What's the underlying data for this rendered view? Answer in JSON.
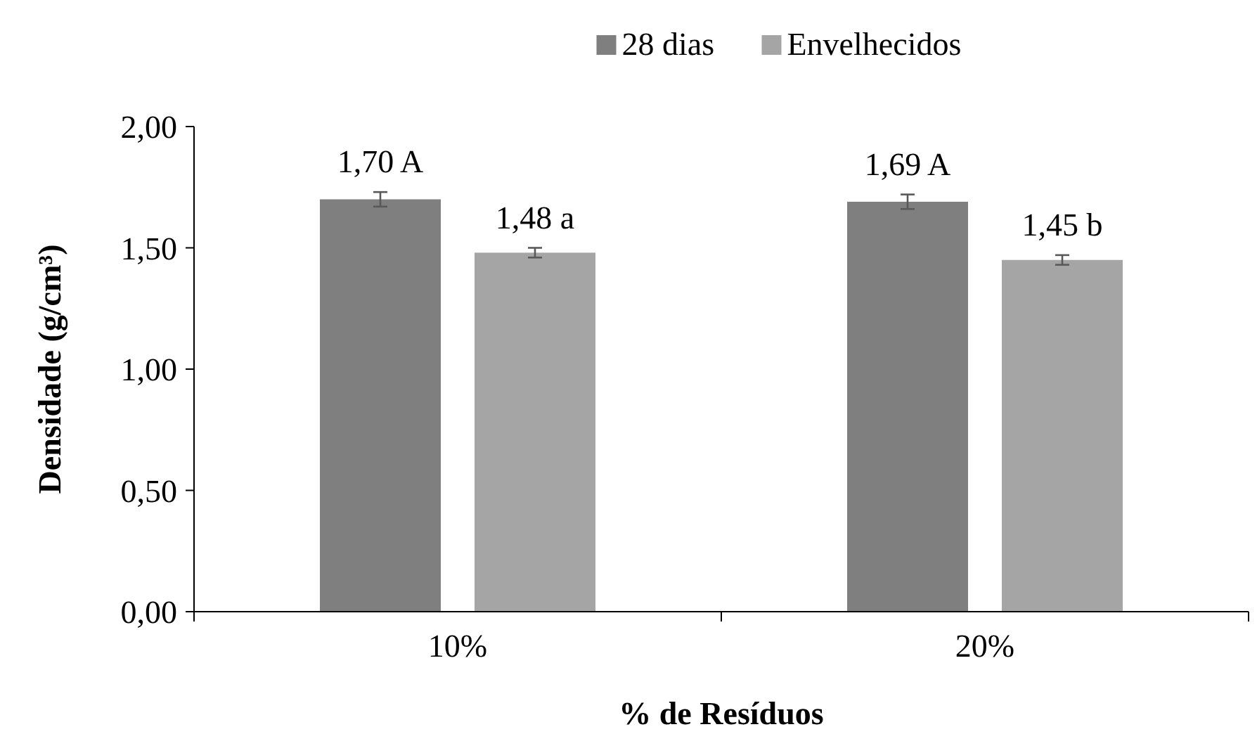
{
  "chart_data": {
    "type": "bar",
    "xlabel": "% de Resíduos",
    "ylabel": "Densidade (g/cm³)",
    "categories": [
      "10%",
      "20%"
    ],
    "series": [
      {
        "name": "28 dias",
        "color": "#7f7f7f",
        "values": [
          1.7,
          1.69
        ],
        "errors": [
          0.03,
          0.03
        ],
        "value_labels": [
          "1,70 A",
          "1,69 A"
        ]
      },
      {
        "name": "Envelhecidos",
        "color": "#a5a5a5",
        "values": [
          1.48,
          1.45
        ],
        "errors": [
          0.02,
          0.02
        ],
        "value_labels": [
          "1,48 a",
          "1,45 b"
        ]
      }
    ],
    "ylim": [
      0,
      2
    ],
    "yticks": [
      {
        "value": 0,
        "label": "0,00"
      },
      {
        "value": 0.5,
        "label": "0,50"
      },
      {
        "value": 1,
        "label": "1,00"
      },
      {
        "value": 1.5,
        "label": "1,50"
      },
      {
        "value": 2,
        "label": "2,00"
      }
    ],
    "grid": false,
    "legend": "top"
  }
}
